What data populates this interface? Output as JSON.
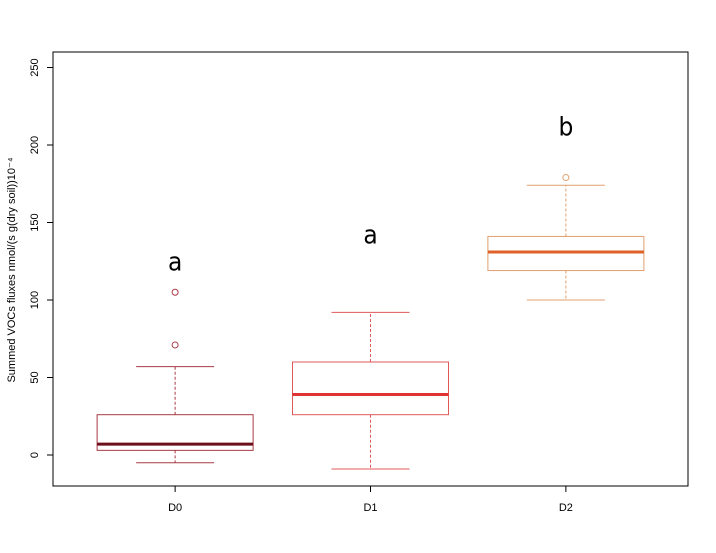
{
  "chart_data": {
    "type": "box",
    "y_label": "Summed VOCs fluxes nmol/(s g(dry soil))10⁻⁴",
    "categories": [
      "D0",
      "D1",
      "D2"
    ],
    "boxes": [
      {
        "low": -5,
        "q1": 3,
        "median": 7,
        "q3": 26,
        "high": 57,
        "outliers": [
          105,
          71
        ],
        "color": "#a83a44",
        "median_color": "#6b0f1a"
      },
      {
        "low": -9,
        "q1": 26,
        "median": 39,
        "q3": 60,
        "high": 92,
        "outliers": [],
        "color": "#e05858",
        "median_color": "#e03434"
      },
      {
        "low": 100,
        "q1": 119,
        "median": 131,
        "q3": 141,
        "high": 174,
        "outliers": [
          179
        ],
        "color": "#e0a070",
        "median_color": "#e0602a"
      }
    ],
    "annotations": [
      "a",
      "a",
      "b"
    ],
    "ylim": [
      -20,
      260
    ],
    "yticks": [
      0,
      50,
      100,
      150,
      200,
      250
    ]
  }
}
